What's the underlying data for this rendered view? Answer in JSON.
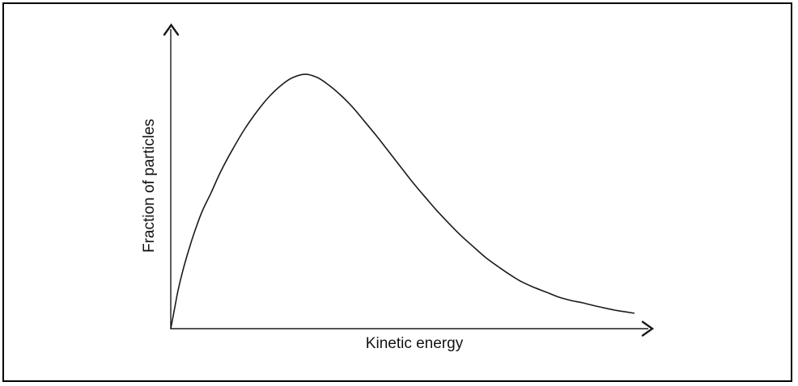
{
  "figure": {
    "background": "#ffffff",
    "border_color": "#000000",
    "line_color": "#1a1a1a",
    "text_color": "#121212",
    "xlabel": "Kinetic energy",
    "ylabel": "Fraction of particles"
  },
  "chart_data": {
    "type": "line",
    "title": "",
    "xlabel": "Kinetic energy",
    "ylabel": "Fraction of particles",
    "legend": "none",
    "axes": {
      "style": "arrow-ended, unlabeled",
      "tick_labels": "none",
      "grid": false,
      "xlim": [
        0,
        1
      ],
      "ylim": [
        0,
        1
      ]
    },
    "series": [
      {
        "name": "fraction-of-particles-vs-kinetic-energy",
        "shape": "Maxwell-Boltzmann-style distribution: steep rise from origin, peak at ~28% of x-range at ~84% of y-range, long decaying tail",
        "peak": {
          "x": 0.279,
          "y": 0.838
        },
        "x": [
          0.0,
          0.007,
          0.015,
          0.025,
          0.037,
          0.05,
          0.065,
          0.084,
          0.104,
          0.128,
          0.153,
          0.18,
          0.205,
          0.23,
          0.253,
          0.279,
          0.304,
          0.327,
          0.351,
          0.376,
          0.401,
          0.426,
          0.451,
          0.477,
          0.502,
          0.527,
          0.552,
          0.577,
          0.602,
          0.628,
          0.653,
          0.678,
          0.703,
          0.728,
          0.753,
          0.779,
          0.804,
          0.829,
          0.854,
          0.888,
          0.921,
          0.96
        ],
        "y": [
          0.0,
          0.059,
          0.125,
          0.191,
          0.258,
          0.322,
          0.386,
          0.449,
          0.519,
          0.59,
          0.657,
          0.718,
          0.766,
          0.803,
          0.827,
          0.838,
          0.827,
          0.803,
          0.771,
          0.731,
          0.684,
          0.636,
          0.585,
          0.532,
          0.481,
          0.434,
          0.388,
          0.346,
          0.306,
          0.269,
          0.234,
          0.205,
          0.178,
          0.154,
          0.136,
          0.12,
          0.104,
          0.093,
          0.085,
          0.072,
          0.061,
          0.051
        ]
      }
    ]
  }
}
